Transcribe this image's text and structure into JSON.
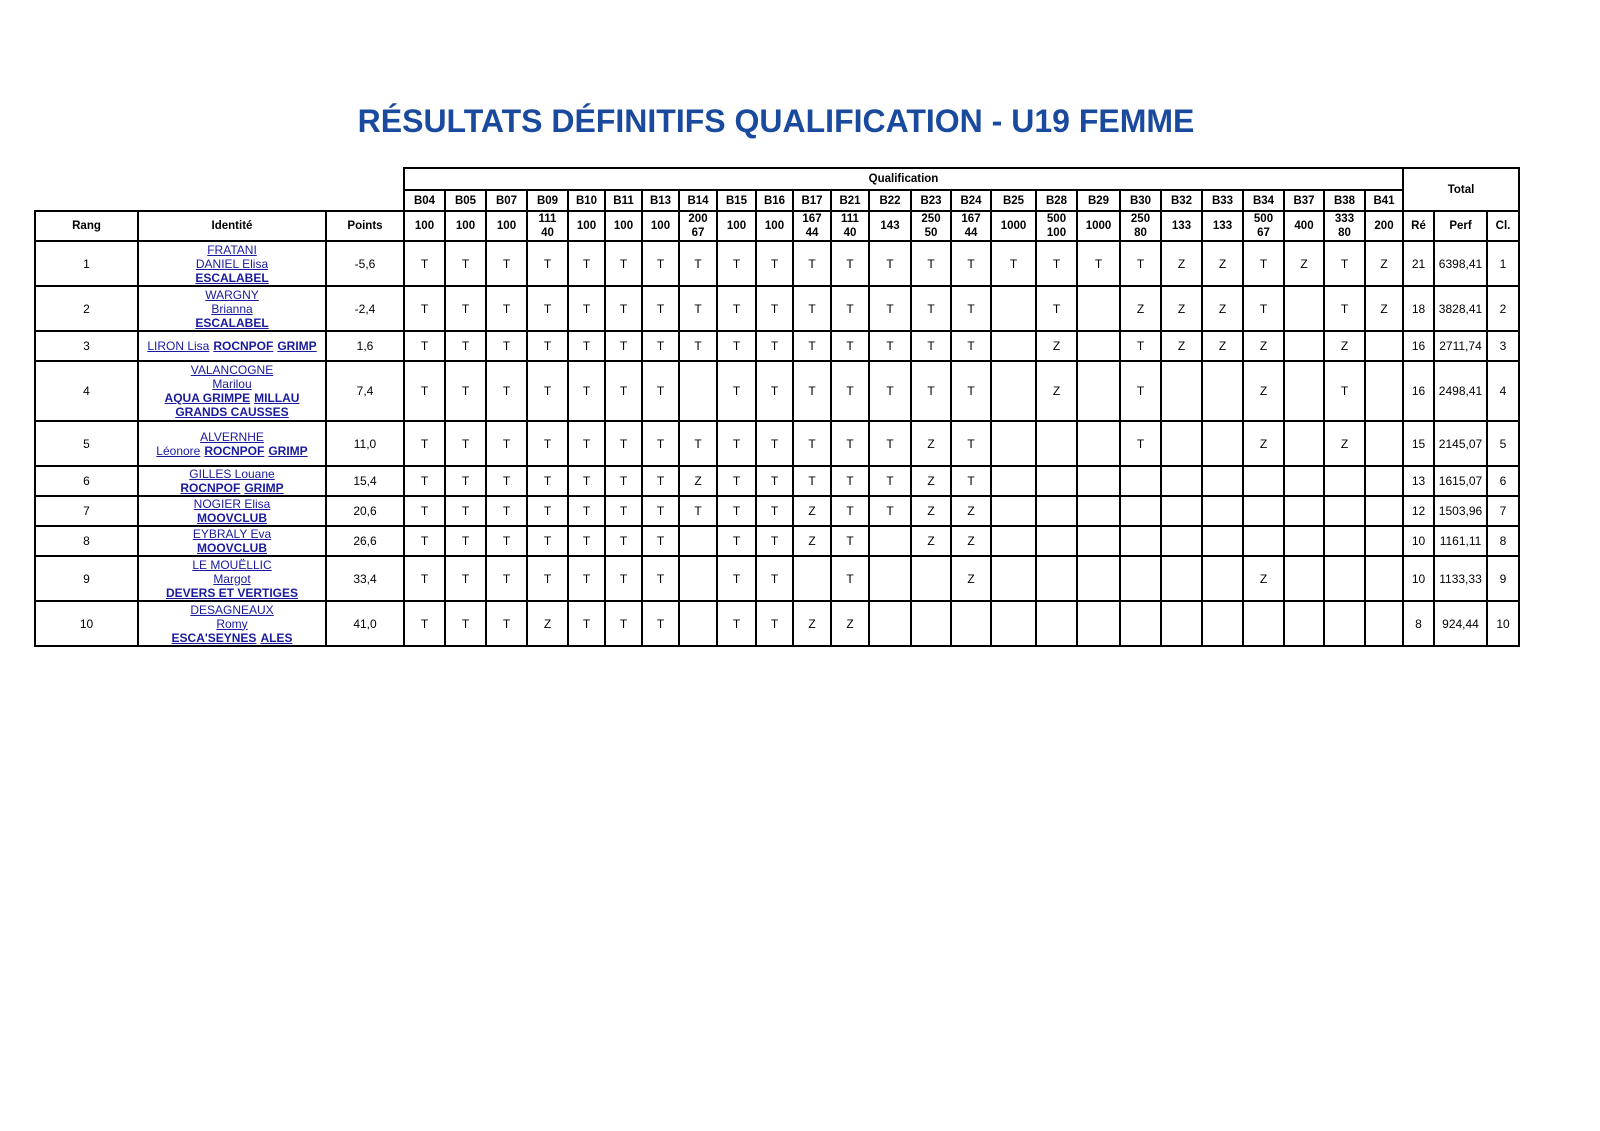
{
  "title": "RÉSULTATS DÉFINITIFS QUALIFICATION - U19 FEMME",
  "table": {
    "group_label": "Qualification",
    "total_label": "Total",
    "headers": {
      "rang": "Rang",
      "identite": "Identité",
      "points": "Points",
      "re": "Ré",
      "perf": "Perf",
      "cl": "Cl."
    },
    "boulders": [
      {
        "name": "B04",
        "value": "100"
      },
      {
        "name": "B05",
        "value": "100"
      },
      {
        "name": "B07",
        "value": "100"
      },
      {
        "name": "B09",
        "value": "111\n40"
      },
      {
        "name": "B10",
        "value": "100"
      },
      {
        "name": "B11",
        "value": "100"
      },
      {
        "name": "B13",
        "value": "100"
      },
      {
        "name": "B14",
        "value": "200\n67"
      },
      {
        "name": "B15",
        "value": "100"
      },
      {
        "name": "B16",
        "value": "100"
      },
      {
        "name": "B17",
        "value": "167\n44"
      },
      {
        "name": "B21",
        "value": "111\n40"
      },
      {
        "name": "B22",
        "value": "143"
      },
      {
        "name": "B23",
        "value": "250\n50"
      },
      {
        "name": "B24",
        "value": "167\n44"
      },
      {
        "name": "B25",
        "value": "1000"
      },
      {
        "name": "B28",
        "value": "500\n100"
      },
      {
        "name": "B29",
        "value": "1000"
      },
      {
        "name": "B30",
        "value": "250\n80"
      },
      {
        "name": "B32",
        "value": "133"
      },
      {
        "name": "B33",
        "value": "133"
      },
      {
        "name": "B34",
        "value": "500\n67"
      },
      {
        "name": "B37",
        "value": "400"
      },
      {
        "name": "B38",
        "value": "333\n80"
      },
      {
        "name": "B41",
        "value": "200"
      }
    ],
    "rows": [
      {
        "rang": "1",
        "identity": [
          [
            {
              "t": "FRATANI",
              "b": false
            }
          ],
          [
            {
              "t": "DANIEL Elisa",
              "b": false
            }
          ],
          [
            {
              "t": "ESCALABEL",
              "b": true
            }
          ]
        ],
        "points": "-5,6",
        "results": [
          "T",
          "T",
          "T",
          "T",
          "T",
          "T",
          "T",
          "T",
          "T",
          "T",
          "T",
          "T",
          "T",
          "T",
          "T",
          "T",
          "T",
          "T",
          "T",
          "Z",
          "Z",
          "T",
          "Z",
          "T",
          "Z"
        ],
        "re": "21",
        "perf": "6398,41",
        "cl": "1"
      },
      {
        "rang": "2",
        "identity": [
          [
            {
              "t": "WARGNY",
              "b": false
            }
          ],
          [
            {
              "t": "Brianna",
              "b": false
            }
          ],
          [
            {
              "t": "ESCALABEL",
              "b": true
            }
          ]
        ],
        "points": "-2,4",
        "results": [
          "T",
          "T",
          "T",
          "T",
          "T",
          "T",
          "T",
          "T",
          "T",
          "T",
          "T",
          "T",
          "T",
          "T",
          "T",
          "",
          "T",
          "",
          "Z",
          "Z",
          "Z",
          "T",
          "",
          "T",
          "Z"
        ],
        "re": "18",
        "perf": "3828,41",
        "cl": "2"
      },
      {
        "rang": "3",
        "identity": [
          [
            {
              "t": "LIRON Lisa",
              "b": false
            },
            {
              "t": "ROCNPOF",
              "b": true
            },
            {
              "t": "GRIMP",
              "b": true
            }
          ]
        ],
        "points": "1,6",
        "results": [
          "T",
          "T",
          "T",
          "T",
          "T",
          "T",
          "T",
          "T",
          "T",
          "T",
          "T",
          "T",
          "T",
          "T",
          "T",
          "",
          "Z",
          "",
          "T",
          "Z",
          "Z",
          "Z",
          "",
          "Z",
          ""
        ],
        "re": "16",
        "perf": "2711,74",
        "cl": "3"
      },
      {
        "rang": "4",
        "identity": [
          [
            {
              "t": "VALANCOGNE",
              "b": false
            }
          ],
          [
            {
              "t": "Marilou",
              "b": false
            }
          ],
          [
            {
              "t": "AQUA GRIMPE",
              "b": true
            },
            {
              "t": "MILLAU",
              "b": true
            }
          ],
          [
            {
              "t": "GRANDS CAUSSES",
              "b": true
            }
          ]
        ],
        "points": "7,4",
        "results": [
          "T",
          "T",
          "T",
          "T",
          "T",
          "T",
          "T",
          "",
          "T",
          "T",
          "T",
          "T",
          "T",
          "T",
          "T",
          "",
          "Z",
          "",
          "T",
          "",
          "",
          "Z",
          "",
          "T",
          ""
        ],
        "re": "16",
        "perf": "2498,41",
        "cl": "4"
      },
      {
        "rang": "5",
        "identity": [
          [
            {
              "t": "ALVERNHE",
              "b": false
            }
          ],
          [
            {
              "t": "Léonore",
              "b": false
            },
            {
              "t": "ROCNPOF",
              "b": true
            },
            {
              "t": "GRIMP",
              "b": true
            }
          ]
        ],
        "points": "11,0",
        "results": [
          "T",
          "T",
          "T",
          "T",
          "T",
          "T",
          "T",
          "T",
          "T",
          "T",
          "T",
          "T",
          "T",
          "Z",
          "T",
          "",
          "",
          "",
          "T",
          "",
          "",
          "Z",
          "",
          "Z",
          ""
        ],
        "re": "15",
        "perf": "2145,07",
        "cl": "5"
      },
      {
        "rang": "6",
        "identity": [
          [
            {
              "t": "GILLES Louane",
              "b": false
            }
          ],
          [
            {
              "t": "ROCNPOF",
              "b": true
            },
            {
              "t": "GRIMP",
              "b": true
            }
          ]
        ],
        "points": "15,4",
        "results": [
          "T",
          "T",
          "T",
          "T",
          "T",
          "T",
          "T",
          "Z",
          "T",
          "T",
          "T",
          "T",
          "T",
          "Z",
          "T",
          "",
          "",
          "",
          "",
          "",
          "",
          "",
          "",
          "",
          ""
        ],
        "re": "13",
        "perf": "1615,07",
        "cl": "6"
      },
      {
        "rang": "7",
        "identity": [
          [
            {
              "t": "NOGIER Elisa",
              "b": false
            }
          ],
          [
            {
              "t": "MOOVCLUB",
              "b": true
            }
          ]
        ],
        "points": "20,6",
        "results": [
          "T",
          "T",
          "T",
          "T",
          "T",
          "T",
          "T",
          "T",
          "T",
          "T",
          "Z",
          "T",
          "T",
          "Z",
          "Z",
          "",
          "",
          "",
          "",
          "",
          "",
          "",
          "",
          "",
          ""
        ],
        "re": "12",
        "perf": "1503,96",
        "cl": "7"
      },
      {
        "rang": "8",
        "identity": [
          [
            {
              "t": "EYBRALY Eva",
              "b": false
            }
          ],
          [
            {
              "t": "MOOVCLUB",
              "b": true
            }
          ]
        ],
        "points": "26,6",
        "results": [
          "T",
          "T",
          "T",
          "T",
          "T",
          "T",
          "T",
          "",
          "T",
          "T",
          "Z",
          "T",
          "",
          "Z",
          "Z",
          "",
          "",
          "",
          "",
          "",
          "",
          "",
          "",
          "",
          ""
        ],
        "re": "10",
        "perf": "1161,11",
        "cl": "8"
      },
      {
        "rang": "9",
        "identity": [
          [
            {
              "t": "LE MOUËLLIC",
              "b": false
            }
          ],
          [
            {
              "t": "Margot",
              "b": false
            }
          ],
          [
            {
              "t": "DEVERS ET VERTIGES",
              "b": true
            }
          ]
        ],
        "points": "33,4",
        "results": [
          "T",
          "T",
          "T",
          "T",
          "T",
          "T",
          "T",
          "",
          "T",
          "T",
          "",
          "T",
          "",
          "",
          "Z",
          "",
          "",
          "",
          "",
          "",
          "",
          "Z",
          "",
          "",
          ""
        ],
        "re": "10",
        "perf": "1133,33",
        "cl": "9"
      },
      {
        "rang": "10",
        "identity": [
          [
            {
              "t": "DESAGNEAUX",
              "b": false
            }
          ],
          [
            {
              "t": "Romy",
              "b": false
            }
          ],
          [
            {
              "t": "ESCA'SEYNES",
              "b": true
            },
            {
              "t": "ALES",
              "b": true
            }
          ]
        ],
        "points": "41,0",
        "results": [
          "T",
          "T",
          "T",
          "Z",
          "T",
          "T",
          "T",
          "",
          "T",
          "T",
          "Z",
          "Z",
          "",
          "",
          "",
          "",
          "",
          "",
          "",
          "",
          "",
          "",
          "",
          "",
          ""
        ],
        "re": "8",
        "perf": "924,44",
        "cl": "10"
      }
    ]
  }
}
